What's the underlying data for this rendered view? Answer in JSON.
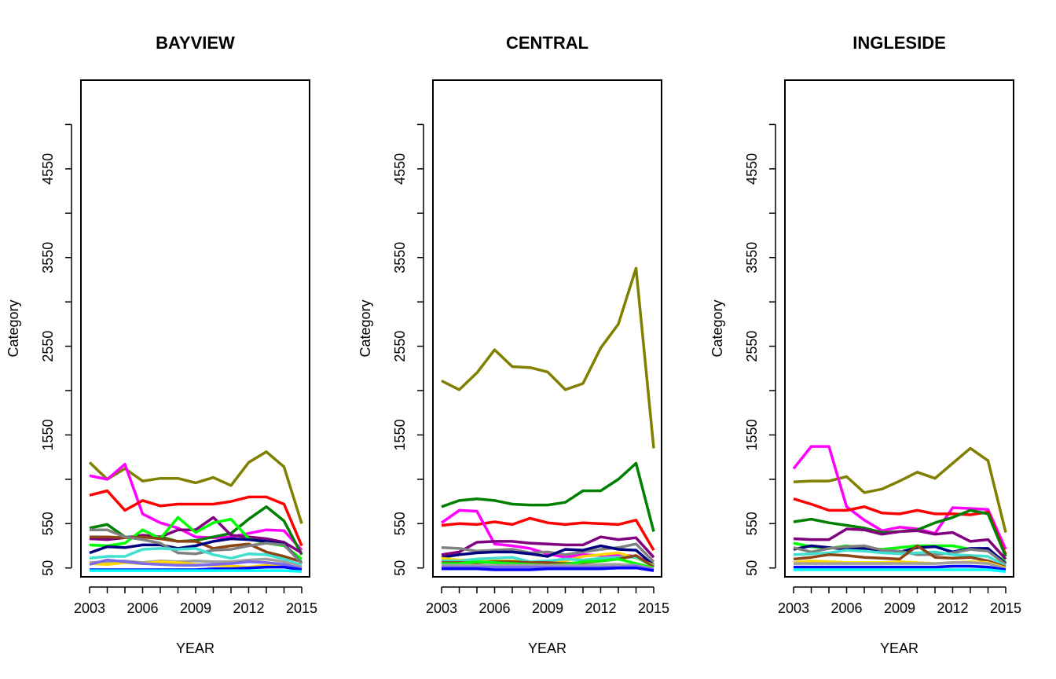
{
  "chart_data": [
    {
      "type": "line",
      "title": "BAYVIEW",
      "xlabel": "YEAR",
      "ylabel": "Category",
      "xlim": [
        2003,
        2015
      ],
      "ylim": [
        -50,
        5550
      ],
      "x_ticks": [
        2003,
        2006,
        2009,
        2012,
        2015
      ],
      "y_ticks": [
        50,
        550,
        1550,
        2550,
        3550,
        4550
      ],
      "legend": "none",
      "grid": false,
      "x": [
        2003,
        2004,
        2005,
        2006,
        2007,
        2008,
        2009,
        2010,
        2011,
        2012,
        2013,
        2014,
        2015
      ],
      "series": [
        {
          "color": "#808000",
          "values": [
            1240,
            1050,
            1170,
            1030,
            1060,
            1060,
            1010,
            1070,
            980,
            1240,
            1360,
            1190,
            550
          ]
        },
        {
          "color": "#FF00FF",
          "values": [
            1090,
            1050,
            1220,
            660,
            560,
            500,
            400,
            390,
            400,
            440,
            480,
            470,
            250
          ]
        },
        {
          "color": "#FF0000",
          "values": [
            870,
            920,
            700,
            810,
            750,
            770,
            770,
            770,
            800,
            850,
            850,
            770,
            300
          ]
        },
        {
          "color": "#008000",
          "values": [
            500,
            540,
            400,
            400,
            400,
            350,
            360,
            400,
            440,
            600,
            740,
            580,
            200
          ]
        },
        {
          "color": "#800080",
          "values": [
            380,
            370,
            390,
            420,
            400,
            480,
            480,
            620,
            420,
            400,
            380,
            340,
            220
          ]
        },
        {
          "color": "#00FF00",
          "values": [
            310,
            300,
            330,
            480,
            380,
            620,
            450,
            560,
            600,
            380,
            330,
            300,
            150
          ]
        },
        {
          "color": "#8B4513",
          "values": [
            400,
            400,
            390,
            400,
            380,
            350,
            350,
            270,
            300,
            320,
            230,
            180,
            120
          ]
        },
        {
          "color": "#000080",
          "values": [
            220,
            290,
            280,
            310,
            310,
            270,
            300,
            350,
            380,
            370,
            350,
            320,
            100
          ]
        },
        {
          "color": "#808080",
          "values": [
            480,
            480,
            400,
            370,
            330,
            220,
            210,
            250,
            260,
            300,
            330,
            310,
            100
          ]
        },
        {
          "color": "#40E0D0",
          "values": [
            160,
            180,
            180,
            260,
            270,
            260,
            270,
            200,
            160,
            210,
            200,
            150,
            80
          ]
        },
        {
          "color": "#A0A0A0",
          "values": [
            110,
            120,
            130,
            110,
            130,
            120,
            130,
            120,
            120,
            140,
            150,
            120,
            60
          ]
        },
        {
          "color": "#FFD700",
          "values": [
            100,
            90,
            110,
            100,
            120,
            110,
            90,
            80,
            70,
            60,
            80,
            70,
            40
          ]
        },
        {
          "color": "#7B68EE",
          "values": [
            90,
            140,
            120,
            100,
            90,
            80,
            80,
            90,
            100,
            120,
            110,
            90,
            40
          ]
        },
        {
          "color": "#0000FF",
          "values": [
            30,
            30,
            30,
            30,
            30,
            30,
            30,
            40,
            40,
            50,
            60,
            60,
            30
          ]
        },
        {
          "color": "#00FFFF",
          "values": [
            20,
            20,
            20,
            20,
            20,
            20,
            20,
            20,
            20,
            20,
            20,
            20,
            10
          ]
        }
      ]
    },
    {
      "type": "line",
      "title": "CENTRAL",
      "xlabel": "YEAR",
      "ylabel": "Category",
      "xlim": [
        2003,
        2015
      ],
      "ylim": [
        -50,
        5550
      ],
      "x_ticks": [
        2003,
        2006,
        2009,
        2012,
        2015
      ],
      "y_ticks": [
        50,
        550,
        1550,
        2550,
        3550,
        4550
      ],
      "legend": "none",
      "grid": false,
      "x": [
        2003,
        2004,
        2005,
        2006,
        2007,
        2008,
        2009,
        2010,
        2011,
        2012,
        2013,
        2014,
        2015
      ],
      "series": [
        {
          "color": "#808000",
          "values": [
            2160,
            2060,
            2250,
            2510,
            2320,
            2310,
            2260,
            2060,
            2130,
            2530,
            2800,
            3430,
            1400
          ]
        },
        {
          "color": "#008000",
          "values": [
            740,
            810,
            830,
            810,
            770,
            760,
            760,
            790,
            920,
            920,
            1050,
            1230,
            460
          ]
        },
        {
          "color": "#FF0000",
          "values": [
            530,
            550,
            540,
            570,
            540,
            610,
            560,
            540,
            560,
            550,
            540,
            590,
            250
          ]
        },
        {
          "color": "#FF00FF",
          "values": [
            560,
            700,
            690,
            320,
            300,
            270,
            210,
            170,
            200,
            190,
            200,
            180,
            90
          ]
        },
        {
          "color": "#800080",
          "values": [
            200,
            230,
            340,
            350,
            350,
            330,
            320,
            310,
            310,
            400,
            370,
            390,
            170
          ]
        },
        {
          "color": "#808080",
          "values": [
            280,
            270,
            240,
            250,
            260,
            220,
            230,
            200,
            230,
            260,
            280,
            320,
            120
          ]
        },
        {
          "color": "#000080",
          "values": [
            170,
            200,
            220,
            230,
            230,
            210,
            180,
            260,
            250,
            300,
            260,
            250,
            80
          ]
        },
        {
          "color": "#FFD700",
          "values": [
            160,
            140,
            140,
            130,
            130,
            120,
            110,
            130,
            180,
            200,
            220,
            160,
            80
          ]
        },
        {
          "color": "#40E0D0",
          "values": [
            130,
            130,
            150,
            160,
            170,
            120,
            130,
            150,
            140,
            160,
            170,
            170,
            70
          ]
        },
        {
          "color": "#8B4513",
          "values": [
            110,
            110,
            110,
            120,
            120,
            110,
            110,
            100,
            110,
            130,
            150,
            190,
            60
          ]
        },
        {
          "color": "#00FF00",
          "values": [
            100,
            100,
            120,
            110,
            100,
            90,
            80,
            90,
            120,
            130,
            150,
            100,
            50
          ]
        },
        {
          "color": "#A0A0A0",
          "values": [
            80,
            80,
            80,
            80,
            80,
            80,
            80,
            80,
            80,
            90,
            90,
            80,
            40
          ]
        },
        {
          "color": "#7B68EE",
          "values": [
            60,
            60,
            60,
            60,
            60,
            60,
            60,
            60,
            60,
            60,
            60,
            70,
            30
          ]
        },
        {
          "color": "#0000FF",
          "values": [
            40,
            40,
            40,
            30,
            30,
            30,
            40,
            40,
            40,
            40,
            50,
            50,
            20
          ]
        }
      ]
    },
    {
      "type": "line",
      "title": "INGLESIDE",
      "xlabel": "YEAR",
      "ylabel": "Category",
      "xlim": [
        2003,
        2015
      ],
      "ylim": [
        -50,
        5550
      ],
      "x_ticks": [
        2003,
        2006,
        2009,
        2012,
        2015
      ],
      "y_ticks": [
        50,
        550,
        1550,
        2550,
        3550,
        4550
      ],
      "legend": "none",
      "grid": false,
      "x": [
        2003,
        2004,
        2005,
        2006,
        2007,
        2008,
        2009,
        2010,
        2011,
        2012,
        2013,
        2014,
        2015
      ],
      "series": [
        {
          "color": "#808000",
          "values": [
            1020,
            1030,
            1030,
            1080,
            900,
            940,
            1030,
            1130,
            1060,
            1230,
            1400,
            1260,
            450
          ]
        },
        {
          "color": "#FF00FF",
          "values": [
            1170,
            1420,
            1420,
            740,
            590,
            470,
            510,
            490,
            440,
            730,
            720,
            710,
            260
          ]
        },
        {
          "color": "#FF0000",
          "values": [
            830,
            770,
            700,
            700,
            740,
            670,
            660,
            700,
            660,
            660,
            650,
            680,
            200
          ]
        },
        {
          "color": "#008000",
          "values": [
            570,
            600,
            560,
            530,
            500,
            450,
            460,
            480,
            560,
            620,
            700,
            660,
            180
          ]
        },
        {
          "color": "#800080",
          "values": [
            380,
            370,
            370,
            490,
            480,
            430,
            460,
            470,
            430,
            450,
            350,
            370,
            150
          ]
        },
        {
          "color": "#00FF00",
          "values": [
            330,
            290,
            270,
            300,
            270,
            260,
            280,
            300,
            300,
            300,
            260,
            250,
            120
          ]
        },
        {
          "color": "#000080",
          "values": [
            260,
            300,
            280,
            260,
            270,
            250,
            230,
            280,
            290,
            230,
            270,
            270,
            100
          ]
        },
        {
          "color": "#808080",
          "values": [
            280,
            230,
            270,
            290,
            300,
            250,
            240,
            200,
            200,
            220,
            260,
            240,
            90
          ]
        },
        {
          "color": "#40E0D0",
          "values": [
            200,
            210,
            220,
            250,
            240,
            220,
            210,
            220,
            230,
            200,
            190,
            180,
            70
          ]
        },
        {
          "color": "#8B4513",
          "values": [
            150,
            170,
            200,
            190,
            170,
            160,
            150,
            300,
            170,
            160,
            170,
            130,
            60
          ]
        },
        {
          "color": "#FFD700",
          "values": [
            110,
            130,
            120,
            110,
            110,
            110,
            120,
            110,
            100,
            110,
            120,
            110,
            50
          ]
        },
        {
          "color": "#A0A0A0",
          "values": [
            100,
            100,
            100,
            100,
            100,
            100,
            100,
            100,
            100,
            110,
            110,
            100,
            40
          ]
        },
        {
          "color": "#0000FF",
          "values": [
            60,
            60,
            60,
            60,
            60,
            60,
            60,
            60,
            60,
            70,
            70,
            60,
            30
          ]
        },
        {
          "color": "#00FFFF",
          "values": [
            30,
            30,
            30,
            30,
            30,
            30,
            30,
            30,
            30,
            30,
            30,
            30,
            10
          ]
        }
      ]
    }
  ]
}
